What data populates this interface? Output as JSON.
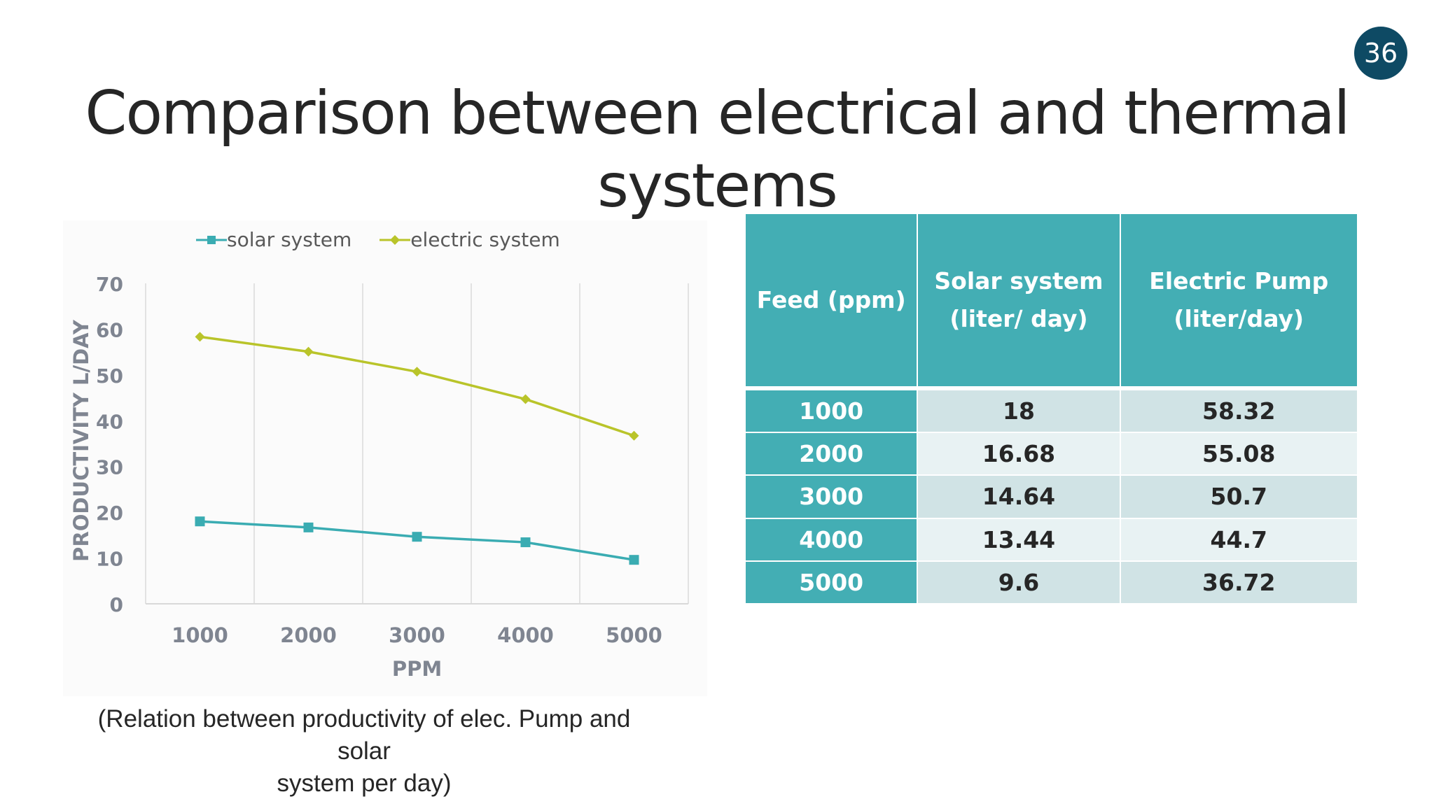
{
  "slide_number": "36",
  "title": {
    "line1": "Comparison between electrical and thermal",
    "line2": "systems"
  },
  "caption": {
    "line1": "(Relation between productivity of elec. Pump and solar",
    "line2": "system per day)"
  },
  "colors": {
    "solar": "#3aacb2",
    "electric": "#b9c42a",
    "table_header": "#43aeb4",
    "slide_number_bg": "#0e4a64"
  },
  "chart_data": {
    "type": "line",
    "x": [
      "1000",
      "2000",
      "3000",
      "4000",
      "5000"
    ],
    "xlabel": "PPM",
    "ylabel": "PRODUCTIVITY L/DAY",
    "ylim": [
      0,
      70
    ],
    "yticks": [
      "0",
      "10",
      "20",
      "30",
      "40",
      "50",
      "60",
      "70"
    ],
    "grid": "vertical",
    "legend_position": "top",
    "series": [
      {
        "name": "solar system",
        "values": [
          18,
          16.68,
          14.64,
          13.44,
          9.6
        ],
        "marker": "square"
      },
      {
        "name": "electric system",
        "values": [
          58.32,
          55.08,
          50.7,
          44.7,
          36.72
        ],
        "marker": "diamond"
      }
    ]
  },
  "table": {
    "headers": [
      "Feed (ppm)",
      "Solar system\n(liter/ day)",
      "Electric Pump\n(liter/day)"
    ],
    "rows": [
      [
        "1000",
        "18",
        "58.32"
      ],
      [
        "2000",
        "16.68",
        "55.08"
      ],
      [
        "3000",
        "14.64",
        "50.7"
      ],
      [
        "4000",
        "13.44",
        "44.7"
      ],
      [
        "5000",
        "9.6",
        "36.72"
      ]
    ]
  }
}
